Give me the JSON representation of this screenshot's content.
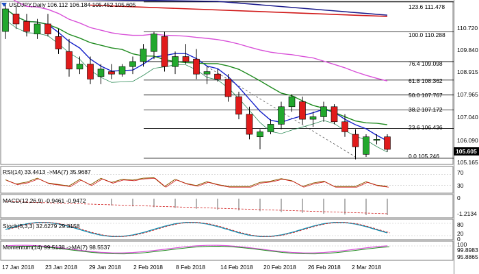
{
  "header": {
    "symbol_line": "USDJPY,Daily  106.112 106.184 105.452 105.605"
  },
  "colors": {
    "bull": "#22a82d",
    "bear": "#e01b1b",
    "ma_blue": "#1522c9",
    "ma_green": "#1e8a1e",
    "ma_magenta": "#d850d8",
    "ma_red": "#d01818",
    "ma_navy": "#1a1a8a",
    "ma_pale": "#2e8b57"
  },
  "price_axis": [
    "110.720",
    "109.840",
    "108.915",
    "107.965",
    "107.040",
    "106.090",
    "105.165"
  ],
  "current_price": "105.605",
  "fib_levels": [
    {
      "label": "123.6",
      "value": "111.478"
    },
    {
      "label": "100.0",
      "value": "110.288"
    },
    {
      "label": "76.4",
      "value": "109.098"
    },
    {
      "label": "61.8",
      "value": "108.362"
    },
    {
      "label": "50.0",
      "value": "107.767"
    },
    {
      "label": "38.2",
      "value": "107.172"
    },
    {
      "label": "23.6",
      "value": "106.436"
    },
    {
      "label": "0.0",
      "value": "105.246"
    }
  ],
  "rsi": {
    "title": "RSI(14) 33.4413  ->MA(7) 35.9687",
    "axis": [
      "70",
      "30"
    ]
  },
  "macd": {
    "title": "MACD(12,26,9) -0.9461 -0.9472",
    "axis": [
      "0",
      "-1.2134"
    ]
  },
  "stoch": {
    "title": "Stoch(5,3,3) 32.6279 29.3158",
    "axis": [
      "80",
      "20",
      "0"
    ]
  },
  "momentum": {
    "title": "Momentum(14) 99.5138  ->MA(7) 98.5537",
    "axis": [
      "100",
      "99.8983",
      "95.8865"
    ]
  },
  "dates": [
    "17 Jan 2018",
    "23 Jan 2018",
    "29 Jan 2018",
    "2 Feb 2018",
    "8 Feb 2018",
    "14 Feb 2018",
    "20 Feb 2018",
    "26 Feb 2018",
    "2 Mar 2018"
  ],
  "chart_data": {
    "type": "candlestick",
    "ylim": [
      105.0,
      111.5
    ],
    "candles": [
      {
        "o": 110.3,
        "h": 111.4,
        "l": 110.0,
        "c": 111.2
      },
      {
        "o": 111.0,
        "h": 111.3,
        "l": 110.4,
        "c": 110.6
      },
      {
        "o": 110.7,
        "h": 111.0,
        "l": 110.1,
        "c": 110.3
      },
      {
        "o": 110.2,
        "h": 110.8,
        "l": 110.0,
        "c": 110.6
      },
      {
        "o": 110.6,
        "h": 111.0,
        "l": 110.1,
        "c": 110.2
      },
      {
        "o": 110.1,
        "h": 110.4,
        "l": 109.4,
        "c": 109.6
      },
      {
        "o": 109.5,
        "h": 110.0,
        "l": 108.5,
        "c": 108.8
      },
      {
        "o": 108.8,
        "h": 109.3,
        "l": 108.6,
        "c": 109.0
      },
      {
        "o": 109.0,
        "h": 109.3,
        "l": 108.2,
        "c": 108.4
      },
      {
        "o": 108.5,
        "h": 109.0,
        "l": 108.2,
        "c": 108.8
      },
      {
        "o": 108.7,
        "h": 109.0,
        "l": 108.4,
        "c": 108.6
      },
      {
        "o": 108.6,
        "h": 109.0,
        "l": 108.5,
        "c": 108.9
      },
      {
        "o": 108.9,
        "h": 109.3,
        "l": 108.6,
        "c": 109.1
      },
      {
        "o": 109.1,
        "h": 109.8,
        "l": 108.9,
        "c": 109.6
      },
      {
        "o": 109.5,
        "h": 110.3,
        "l": 109.2,
        "c": 110.2
      },
      {
        "o": 110.1,
        "h": 110.3,
        "l": 108.7,
        "c": 108.9
      },
      {
        "o": 108.9,
        "h": 109.5,
        "l": 108.6,
        "c": 109.3
      },
      {
        "o": 109.3,
        "h": 109.8,
        "l": 109.0,
        "c": 109.1
      },
      {
        "o": 109.2,
        "h": 109.6,
        "l": 108.4,
        "c": 108.6
      },
      {
        "o": 108.6,
        "h": 108.9,
        "l": 108.2,
        "c": 108.7
      },
      {
        "o": 108.6,
        "h": 108.8,
        "l": 108.3,
        "c": 108.4
      },
      {
        "o": 108.4,
        "h": 108.6,
        "l": 107.5,
        "c": 107.7
      },
      {
        "o": 107.7,
        "h": 107.9,
        "l": 106.8,
        "c": 107.0
      },
      {
        "o": 107.0,
        "h": 107.3,
        "l": 106.0,
        "c": 106.2
      },
      {
        "o": 106.1,
        "h": 106.4,
        "l": 105.6,
        "c": 106.3
      },
      {
        "o": 106.3,
        "h": 106.8,
        "l": 106.2,
        "c": 106.6
      },
      {
        "o": 106.6,
        "h": 107.5,
        "l": 106.4,
        "c": 107.3
      },
      {
        "o": 107.3,
        "h": 107.8,
        "l": 107.1,
        "c": 107.7
      },
      {
        "o": 107.5,
        "h": 107.7,
        "l": 106.6,
        "c": 106.8
      },
      {
        "o": 106.8,
        "h": 107.1,
        "l": 106.5,
        "c": 106.9
      },
      {
        "o": 106.9,
        "h": 107.5,
        "l": 106.7,
        "c": 107.3
      },
      {
        "o": 107.3,
        "h": 107.4,
        "l": 106.6,
        "c": 106.7
      },
      {
        "o": 106.7,
        "h": 107.0,
        "l": 106.1,
        "c": 106.3
      },
      {
        "o": 106.2,
        "h": 106.4,
        "l": 105.2,
        "c": 105.7
      },
      {
        "o": 105.4,
        "h": 106.2,
        "l": 105.3,
        "c": 106.1
      },
      {
        "o": 106.0,
        "h": 106.2,
        "l": 105.8,
        "c": 106.0
      },
      {
        "o": 106.1,
        "h": 106.2,
        "l": 105.5,
        "c": 105.6
      }
    ]
  }
}
